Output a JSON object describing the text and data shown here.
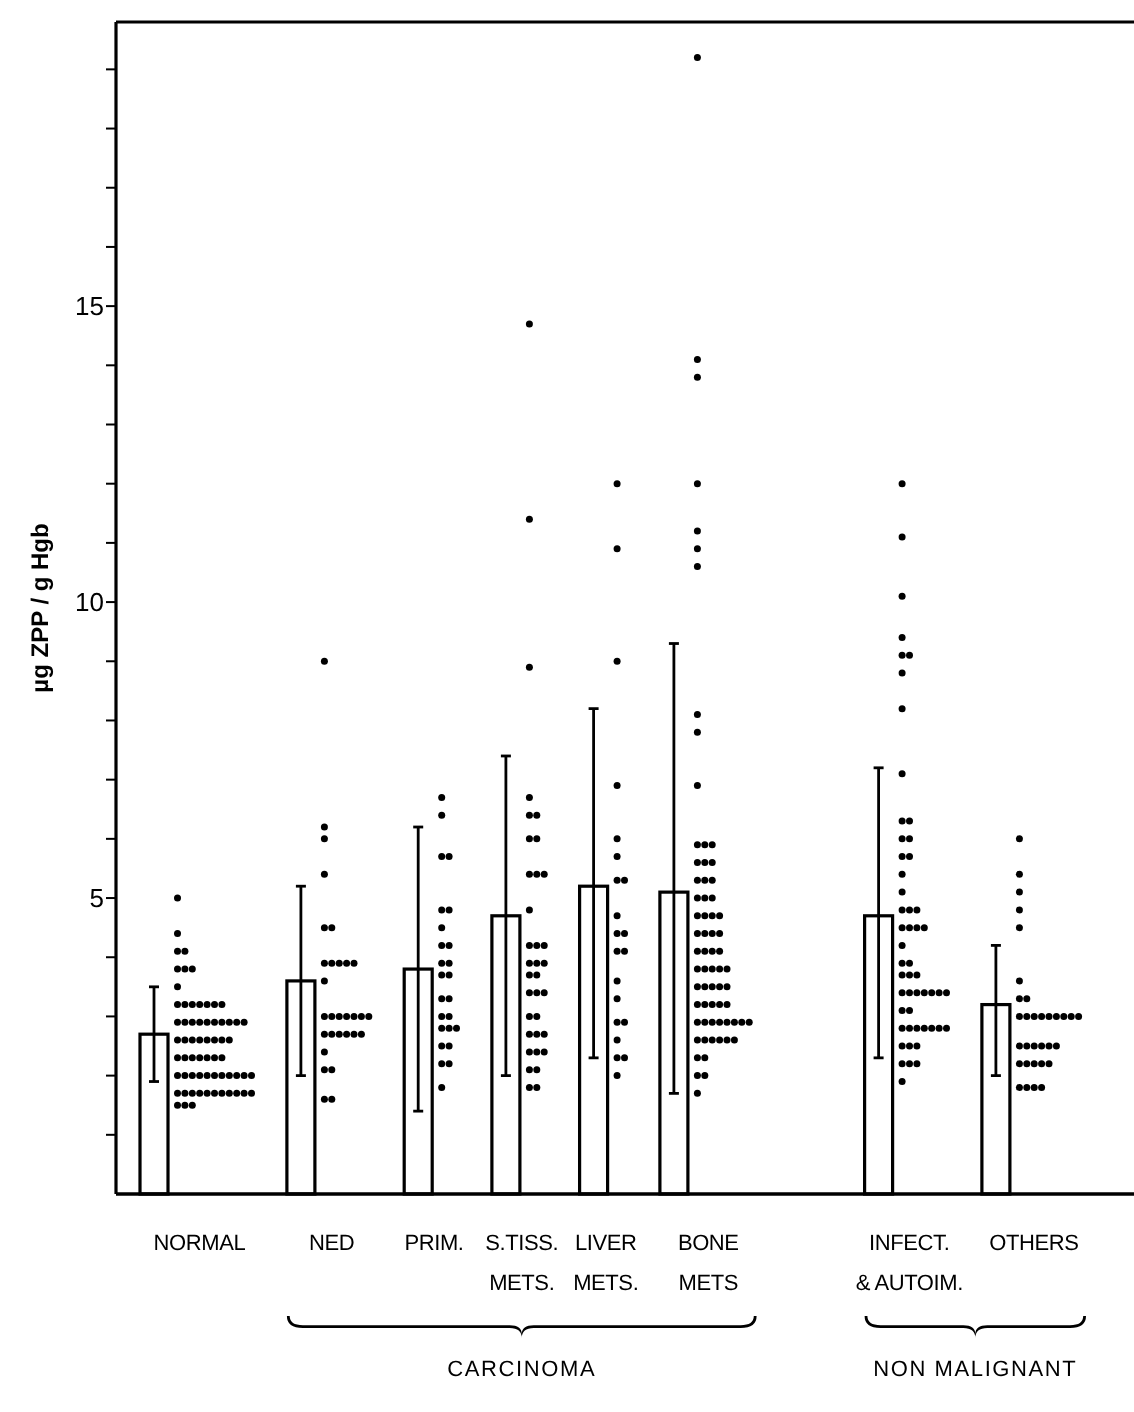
{
  "chart_data": {
    "type": "bar",
    "ylabel": "µg ZPP / g Hgb",
    "marker": "circle",
    "categories": [
      "NORMAL",
      "NED",
      "PRIM.",
      "S.TISS. METS.",
      "LIVER METS.",
      "BONE METS",
      "INFECT. & AUTOIM.",
      "OTHERS"
    ],
    "ylim": [
      0,
      19.8
    ],
    "yticks": [
      {
        "value": 1,
        "label": null
      },
      {
        "value": 2,
        "label": null
      },
      {
        "value": 3,
        "label": null
      },
      {
        "value": 4,
        "label": null
      },
      5,
      {
        "value": 6,
        "label": null
      },
      {
        "value": 7,
        "label": null
      },
      {
        "value": 8,
        "label": null
      },
      {
        "value": 9,
        "label": null
      },
      10,
      {
        "value": 11,
        "label": null
      },
      {
        "value": 12,
        "label": null
      },
      {
        "value": 13,
        "label": null
      },
      {
        "value": 14,
        "label": null
      },
      15,
      {
        "value": 16,
        "label": null
      },
      {
        "value": 17,
        "label": null
      },
      {
        "value": 18,
        "label": null
      },
      {
        "value": 19,
        "label": null
      }
    ],
    "annotations": [
      "CARCINOMA",
      "NON MALIGNANT"
    ],
    "series": [
      {
        "color": "#ffffff",
        "values": [
          2.7,
          3.6,
          3.8,
          4.7,
          5.2,
          5.1,
          4.7,
          3.2
        ],
        "errors": [
          [
            1.9,
            3.5
          ],
          [
            2.0,
            5.2
          ],
          [
            1.4,
            6.2
          ],
          [
            2.0,
            7.4
          ],
          [
            2.3,
            8.2
          ],
          [
            1.7,
            9.3
          ],
          [
            2.3,
            7.2
          ],
          [
            2.0,
            4.2
          ]
        ]
      },
      {
        "type": "scatter",
        "color": "#000000",
        "x": [
          "NORMAL",
          "NORMAL",
          "NORMAL",
          "NORMAL",
          "NORMAL",
          "NORMAL",
          "NORMAL",
          "NORMAL",
          "NORMAL",
          "NORMAL",
          "NORMAL",
          "NORMAL",
          "NORMAL",
          "NORMAL",
          "NORMAL",
          "NORMAL",
          "NORMAL",
          "NORMAL",
          "NORMAL",
          "NORMAL",
          "NORMAL",
          "NORMAL",
          "NORMAL",
          "NORMAL",
          "NORMAL",
          "NORMAL",
          "NORMAL",
          "NORMAL",
          "NORMAL",
          "NORMAL",
          "NORMAL",
          "NORMAL",
          "NORMAL",
          "NORMAL",
          "NORMAL",
          "NORMAL",
          "NORMAL",
          "NORMAL",
          "NORMAL",
          "NORMAL",
          "NORMAL",
          "NORMAL",
          "NORMAL",
          "NORMAL",
          "NORMAL",
          "NORMAL",
          "NORMAL",
          "NORMAL",
          "NORMAL",
          "NORMAL",
          "NORMAL",
          "NORMAL",
          "NORMAL",
          "NORMAL",
          "NORMAL",
          "NORMAL",
          "NORMAL",
          "NORMAL",
          "NORMAL",
          "NORMAL",
          "NORMAL",
          "NORMAL",
          "NORMAL",
          "NORMAL",
          "NORMAL"
        ],
        "values": [
          5.0,
          4.4,
          4.1,
          4.1,
          3.8,
          3.8,
          3.8,
          3.5,
          3.2,
          3.2,
          3.2,
          3.2,
          3.2,
          3.2,
          3.2,
          2.9,
          2.9,
          2.9,
          2.9,
          2.9,
          2.9,
          2.9,
          2.9,
          2.9,
          2.9,
          2.6,
          2.6,
          2.6,
          2.6,
          2.6,
          2.6,
          2.6,
          2.6,
          2.3,
          2.3,
          2.3,
          2.3,
          2.3,
          2.3,
          2.3,
          2.0,
          2.0,
          2.0,
          2.0,
          2.0,
          2.0,
          2.0,
          2.0,
          2.0,
          2.0,
          2.0,
          1.7,
          1.7,
          1.7,
          1.7,
          1.7,
          1.7,
          1.7,
          1.7,
          1.7,
          1.7,
          1.7,
          1.5,
          1.5,
          1.5
        ]
      },
      {
        "type": "scatter",
        "color": "#000000",
        "x": [
          "NED",
          "NED",
          "NED",
          "NED",
          "NED",
          "NED",
          "NED",
          "NED",
          "NED",
          "NED",
          "NED",
          "NED",
          "NED",
          "NED",
          "NED",
          "NED",
          "NED",
          "NED",
          "NED",
          "NED",
          "NED",
          "NED",
          "NED",
          "NED",
          "NED",
          "NED",
          "NED",
          "NED",
          "NED",
          "NED"
        ],
        "values": [
          9.0,
          6.2,
          6.0,
          5.4,
          4.5,
          4.5,
          3.9,
          3.9,
          3.9,
          3.9,
          3.9,
          3.6,
          3.0,
          3.0,
          3.0,
          3.0,
          3.0,
          3.0,
          3.0,
          2.7,
          2.7,
          2.7,
          2.7,
          2.7,
          2.7,
          2.4,
          2.1,
          2.1,
          1.6,
          1.6
        ]
      },
      {
        "type": "scatter",
        "color": "#000000",
        "x": [
          "PRIM.",
          "PRIM.",
          "PRIM.",
          "PRIM.",
          "PRIM.",
          "PRIM.",
          "PRIM.",
          "PRIM.",
          "PRIM.",
          "PRIM.",
          "PRIM.",
          "PRIM.",
          "PRIM.",
          "PRIM.",
          "PRIM.",
          "PRIM.",
          "PRIM.",
          "PRIM.",
          "PRIM.",
          "PRIM.",
          "PRIM.",
          "PRIM.",
          "PRIM.",
          "PRIM.",
          "PRIM."
        ],
        "values": [
          6.7,
          6.4,
          5.7,
          5.7,
          4.8,
          4.8,
          4.5,
          4.2,
          4.2,
          3.9,
          3.9,
          3.7,
          3.7,
          3.3,
          3.3,
          3.0,
          3.0,
          2.8,
          2.8,
          2.8,
          2.5,
          2.5,
          2.2,
          2.2,
          1.8
        ]
      },
      {
        "type": "scatter",
        "color": "#000000",
        "x": [
          "S.TISS. METS.",
          "S.TISS. METS.",
          "S.TISS. METS.",
          "S.TISS. METS.",
          "S.TISS. METS.",
          "S.TISS. METS.",
          "S.TISS. METS.",
          "S.TISS. METS.",
          "S.TISS. METS.",
          "S.TISS. METS.",
          "S.TISS. METS.",
          "S.TISS. METS.",
          "S.TISS. METS.",
          "S.TISS. METS.",
          "S.TISS. METS.",
          "S.TISS. METS.",
          "S.TISS. METS.",
          "S.TISS. METS.",
          "S.TISS. METS.",
          "S.TISS. METS.",
          "S.TISS. METS.",
          "S.TISS. METS.",
          "S.TISS. METS.",
          "S.TISS. METS.",
          "S.TISS. METS.",
          "S.TISS. METS.",
          "S.TISS. METS.",
          "S.TISS. METS.",
          "S.TISS. METS.",
          "S.TISS. METS.",
          "S.TISS. METS.",
          "S.TISS. METS.",
          "S.TISS. METS.",
          "S.TISS. METS.",
          "S.TISS. METS."
        ],
        "values": [
          14.7,
          11.4,
          8.9,
          6.7,
          6.4,
          6.4,
          6.0,
          6.0,
          5.4,
          5.4,
          5.4,
          4.8,
          4.2,
          4.2,
          4.2,
          3.9,
          3.9,
          3.9,
          3.7,
          3.7,
          3.4,
          3.4,
          3.4,
          3.0,
          3.0,
          2.7,
          2.7,
          2.7,
          2.4,
          2.4,
          2.4,
          2.1,
          2.1,
          1.8,
          1.8
        ]
      },
      {
        "type": "scatter",
        "color": "#000000",
        "x": [
          "LIVER METS.",
          "LIVER METS.",
          "LIVER METS.",
          "LIVER METS.",
          "LIVER METS.",
          "LIVER METS.",
          "LIVER METS.",
          "LIVER METS.",
          "LIVER METS.",
          "LIVER METS.",
          "LIVER METS.",
          "LIVER METS.",
          "LIVER METS.",
          "LIVER METS.",
          "LIVER METS.",
          "LIVER METS.",
          "LIVER METS.",
          "LIVER METS.",
          "LIVER METS.",
          "LIVER METS.",
          "LIVER METS."
        ],
        "values": [
          12.0,
          10.9,
          9.0,
          6.9,
          6.0,
          5.7,
          5.3,
          5.3,
          4.7,
          4.4,
          4.4,
          4.1,
          4.1,
          3.6,
          3.3,
          2.9,
          2.9,
          2.6,
          2.3,
          2.3,
          2.0
        ]
      },
      {
        "type": "scatter",
        "color": "#000000",
        "x": [
          "BONE METS",
          "BONE METS",
          "BONE METS",
          "BONE METS",
          "BONE METS",
          "BONE METS",
          "BONE METS",
          "BONE METS",
          "BONE METS",
          "BONE METS",
          "BONE METS",
          "BONE METS",
          "BONE METS",
          "BONE METS",
          "BONE METS",
          "BONE METS",
          "BONE METS",
          "BONE METS",
          "BONE METS",
          "BONE METS",
          "BONE METS",
          "BONE METS",
          "BONE METS",
          "BONE METS",
          "BONE METS",
          "BONE METS",
          "BONE METS",
          "BONE METS",
          "BONE METS",
          "BONE METS",
          "BONE METS",
          "BONE METS",
          "BONE METS",
          "BONE METS",
          "BONE METS",
          "BONE METS",
          "BONE METS",
          "BONE METS",
          "BONE METS",
          "BONE METS",
          "BONE METS",
          "BONE METS",
          "BONE METS",
          "BONE METS",
          "BONE METS",
          "BONE METS",
          "BONE METS",
          "BONE METS",
          "BONE METS",
          "BONE METS",
          "BONE METS",
          "BONE METS",
          "BONE METS",
          "BONE METS",
          "BONE METS",
          "BONE METS",
          "BONE METS",
          "BONE METS",
          "BONE METS",
          "BONE METS",
          "BONE METS",
          "BONE METS",
          "BONE METS",
          "BONE METS",
          "BONE METS",
          "BONE METS",
          "BONE METS",
          "BONE METS"
        ],
        "values": [
          19.2,
          14.1,
          13.8,
          12.0,
          11.2,
          10.9,
          10.6,
          8.1,
          7.8,
          6.9,
          5.9,
          5.9,
          5.9,
          5.6,
          5.6,
          5.6,
          5.3,
          5.3,
          5.3,
          5.0,
          5.0,
          5.0,
          4.7,
          4.7,
          4.7,
          4.7,
          4.4,
          4.4,
          4.4,
          4.4,
          4.1,
          4.1,
          4.1,
          4.1,
          3.8,
          3.8,
          3.8,
          3.8,
          3.8,
          3.5,
          3.5,
          3.5,
          3.5,
          3.5,
          3.2,
          3.2,
          3.2,
          3.2,
          3.2,
          2.9,
          2.9,
          2.9,
          2.9,
          2.9,
          2.9,
          2.9,
          2.9,
          2.6,
          2.6,
          2.6,
          2.6,
          2.6,
          2.6,
          2.3,
          2.3,
          2.0,
          2.0,
          1.7
        ]
      },
      {
        "type": "scatter",
        "color": "#000000",
        "x": [
          "INFECT. & AUTOIM.",
          "INFECT. & AUTOIM.",
          "INFECT. & AUTOIM.",
          "INFECT. & AUTOIM.",
          "INFECT. & AUTOIM.",
          "INFECT. & AUTOIM.",
          "INFECT. & AUTOIM.",
          "INFECT. & AUTOIM.",
          "INFECT. & AUTOIM.",
          "INFECT. & AUTOIM.",
          "INFECT. & AUTOIM.",
          "INFECT. & AUTOIM.",
          "INFECT. & AUTOIM.",
          "INFECT. & AUTOIM.",
          "INFECT. & AUTOIM.",
          "INFECT. & AUTOIM.",
          "INFECT. & AUTOIM.",
          "INFECT. & AUTOIM.",
          "INFECT. & AUTOIM.",
          "INFECT. & AUTOIM.",
          "INFECT. & AUTOIM.",
          "INFECT. & AUTOIM.",
          "INFECT. & AUTOIM.",
          "INFECT. & AUTOIM.",
          "INFECT. & AUTOIM.",
          "INFECT. & AUTOIM.",
          "INFECT. & AUTOIM.",
          "INFECT. & AUTOIM.",
          "INFECT. & AUTOIM.",
          "INFECT. & AUTOIM.",
          "INFECT. & AUTOIM.",
          "INFECT. & AUTOIM.",
          "INFECT. & AUTOIM.",
          "INFECT. & AUTOIM.",
          "INFECT. & AUTOIM.",
          "INFECT. & AUTOIM.",
          "INFECT. & AUTOIM.",
          "INFECT. & AUTOIM.",
          "INFECT. & AUTOIM.",
          "INFECT. & AUTOIM.",
          "INFECT. & AUTOIM.",
          "INFECT. & AUTOIM.",
          "INFECT. & AUTOIM.",
          "INFECT. & AUTOIM.",
          "INFECT. & AUTOIM.",
          "INFECT. & AUTOIM.",
          "INFECT. & AUTOIM.",
          "INFECT. & AUTOIM.",
          "INFECT. & AUTOIM.",
          "INFECT. & AUTOIM.",
          "INFECT. & AUTOIM.",
          "INFECT. & AUTOIM.",
          "INFECT. & AUTOIM."
        ],
        "values": [
          12.0,
          11.1,
          10.1,
          9.4,
          9.1,
          9.1,
          8.8,
          8.2,
          7.1,
          6.3,
          6.3,
          6.0,
          6.0,
          5.7,
          5.7,
          5.4,
          5.1,
          4.8,
          4.8,
          4.8,
          4.5,
          4.5,
          4.5,
          4.5,
          4.2,
          3.9,
          3.9,
          3.7,
          3.7,
          3.7,
          3.4,
          3.4,
          3.4,
          3.4,
          3.4,
          3.4,
          3.4,
          3.1,
          3.1,
          2.8,
          2.8,
          2.8,
          2.8,
          2.8,
          2.8,
          2.8,
          2.5,
          2.5,
          2.5,
          2.2,
          2.2,
          2.2,
          1.9
        ]
      },
      {
        "type": "scatter",
        "color": "#000000",
        "x": [
          "OTHERS",
          "OTHERS",
          "OTHERS",
          "OTHERS",
          "OTHERS",
          "OTHERS",
          "OTHERS",
          "OTHERS",
          "OTHERS",
          "OTHERS",
          "OTHERS",
          "OTHERS",
          "OTHERS",
          "OTHERS",
          "OTHERS",
          "OTHERS",
          "OTHERS",
          "OTHERS",
          "OTHERS",
          "OTHERS",
          "OTHERS",
          "OTHERS",
          "OTHERS",
          "OTHERS",
          "OTHERS",
          "OTHERS",
          "OTHERS",
          "OTHERS",
          "OTHERS",
          "OTHERS",
          "OTHERS",
          "OTHERS"
        ],
        "values": [
          6.0,
          5.4,
          5.1,
          4.8,
          4.5,
          3.6,
          3.3,
          3.3,
          3.0,
          3.0,
          3.0,
          3.0,
          3.0,
          3.0,
          3.0,
          3.0,
          3.0,
          2.5,
          2.5,
          2.5,
          2.5,
          2.5,
          2.5,
          2.2,
          2.2,
          2.2,
          2.2,
          2.2,
          1.8,
          1.8,
          1.8,
          1.8
        ]
      }
    ]
  }
}
